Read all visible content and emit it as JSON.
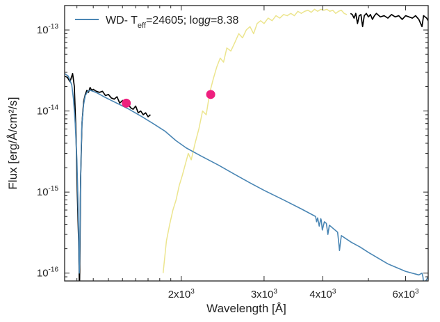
{
  "chart_data": {
    "type": "line",
    "title": "",
    "xlabel": "Wavelength [Å]",
    "ylabel": "Flux [erg/Å/cm²/s]",
    "xscale": "log",
    "yscale": "log",
    "xlim": [
      1130,
      6700
    ],
    "ylim": [
      8e-17,
      2e-13
    ],
    "grid": false,
    "legend": {
      "placement": "top-left",
      "entries": [
        "WD- Teff=24605; logg=8.38"
      ]
    },
    "legend_parts": {
      "prefix": "WD- T",
      "sub": "eff",
      "mid": "=24605; log",
      "italic": "g",
      "suffix": "=8.38"
    },
    "x_ticks": [
      {
        "value": 2000,
        "mant": "2x10",
        "exp": "3"
      },
      {
        "value": 3000,
        "mant": "3x10",
        "exp": "3"
      },
      {
        "value": 4000,
        "mant": "4x10",
        "exp": "3"
      },
      {
        "value": 6000,
        "mant": "6x10",
        "exp": "3"
      }
    ],
    "y_ticks": [
      {
        "value": 1e-16,
        "mant": "10",
        "exp": "-16"
      },
      {
        "value": 1e-15,
        "mant": "10",
        "exp": "-15"
      },
      {
        "value": 1e-14,
        "mant": "10",
        "exp": "-14"
      },
      {
        "value": 1e-13,
        "mant": "10",
        "exp": "-13"
      }
    ],
    "series": [
      {
        "name": "WD- Teff=24605; logg=8.38",
        "kind": "model",
        "color": "#4a86b4",
        "x": [
          1130,
          1150,
          1170,
          1180,
          1190,
          1200,
          1205,
          1210,
          1212,
          1214,
          1216,
          1218,
          1220,
          1225,
          1230,
          1240,
          1250,
          1265,
          1280,
          1300,
          1330,
          1370,
          1420,
          1480,
          1550,
          1650,
          1750,
          1850,
          1950,
          2050,
          2200,
          2400,
          2600,
          2800,
          3000,
          3300,
          3600,
          3860,
          3880,
          3900,
          3930,
          3960,
          3970,
          3990,
          4030,
          4070,
          4100,
          4130,
          4300,
          4320,
          4340,
          4360,
          4380,
          4600,
          4800,
          5000,
          5500,
          6000,
          6400,
          6500,
          6530,
          6560,
          6590,
          6620,
          6700
        ],
        "y": [
          2.9e-14,
          2.7e-14,
          2.1e-14,
          1.4e-14,
          7e-15,
          2.5e-15,
          1e-15,
          3.5e-16,
          1.5e-16,
          1e-16,
          1.3e-16,
          3e-16,
          8e-16,
          3e-15,
          7e-15,
          1.2e-14,
          1.55e-14,
          1.75e-14,
          1.8e-14,
          1.75e-14,
          1.65e-14,
          1.5e-14,
          1.35e-14,
          1.2e-14,
          1.05e-14,
          8.5e-15,
          6.9e-15,
          5.6e-15,
          4.3e-15,
          3.5e-15,
          2.8e-15,
          2.15e-15,
          1.65e-15,
          1.3e-15,
          1.05e-15,
          8e-16,
          6.2e-16,
          5e-16,
          4.3e-16,
          4.8e-16,
          3.8e-16,
          4.7e-16,
          4.5e-16,
          3.4e-16,
          4.3e-16,
          4.1e-16,
          3e-16,
          3.9e-16,
          3.2e-16,
          2.5e-16,
          1.9e-16,
          2.4e-16,
          2.9e-16,
          2.4e-16,
          2.1e-16,
          1.8e-16,
          1.3e-16,
          1.05e-16,
          9.5e-17,
          1e-16,
          9e-17,
          7e-17,
          6e-17,
          8e-17,
          9e-17
        ]
      },
      {
        "name": "",
        "kind": "observed-uv",
        "color": "#000000",
        "x": [
          1130,
          1145,
          1160,
          1175,
          1185,
          1195,
          1200,
          1205,
          1210,
          1214,
          1216,
          1218,
          1222,
          1230,
          1240,
          1250,
          1260,
          1270,
          1280,
          1290,
          1300,
          1320,
          1340,
          1360,
          1380,
          1400,
          1420,
          1440,
          1460,
          1480,
          1500,
          1520,
          1540,
          1560,
          1580,
          1600,
          1620,
          1640,
          1660,
          1680,
          1700,
          1720
        ],
        "y": [
          2.7e-14,
          2.6e-14,
          2.3e-14,
          2.9e-14,
          2e-14,
          5e-15,
          1.5e-15,
          6e-16,
          2.5e-16,
          8e-17,
          8e-17,
          2e-16,
          1.5e-15,
          7e-15,
          1.3e-14,
          1.6e-14,
          1.8e-14,
          1.7e-14,
          1.95e-14,
          1.8e-14,
          1.85e-14,
          1.75e-14,
          1.7e-14,
          1.75e-14,
          1.55e-14,
          1.6e-14,
          1.45e-14,
          1.4e-14,
          1.5e-14,
          1.25e-14,
          1.35e-14,
          1.15e-14,
          1.25e-14,
          1.1e-14,
          1.05e-14,
          1.15e-14,
          9.5e-15,
          1e-14,
          9e-15,
          9.5e-15,
          8.5e-15,
          9e-15
        ]
      },
      {
        "name": "",
        "kind": "observed-optical",
        "color": "#000000",
        "x": [
          4580,
          4620,
          4660,
          4700,
          4740,
          4780,
          4820,
          4860,
          4900,
          4950,
          5000,
          5050,
          5100,
          5150,
          5200,
          5300,
          5400,
          5500,
          5600,
          5700,
          5800,
          5900,
          6000,
          6100,
          6200,
          6300,
          6400,
          6500,
          6550,
          6600,
          6650,
          6700
        ],
        "y": [
          1.6e-13,
          1.55e-13,
          1.4e-13,
          1.6e-13,
          1.2e-13,
          1.5e-13,
          1.55e-13,
          1.1e-13,
          1.5e-13,
          1.6e-13,
          1.45e-13,
          1.55e-13,
          1.35e-13,
          1.5e-13,
          1.6e-13,
          1.45e-13,
          1.5e-13,
          1.4e-13,
          1.55e-13,
          1.45e-13,
          1.5e-13,
          1.35e-13,
          1.5e-13,
          1.45e-13,
          1.4e-13,
          1.5e-13,
          1.35e-13,
          1.1e-13,
          1.5e-13,
          1.45e-13,
          1.4e-13,
          1.3e-13
        ]
      },
      {
        "name": "",
        "kind": "template",
        "color": "#ece58e",
        "x": [
          1830,
          1860,
          1890,
          1920,
          1950,
          1980,
          2010,
          2040,
          2070,
          2100,
          2140,
          2180,
          2220,
          2260,
          2300,
          2340,
          2380,
          2420,
          2460,
          2500,
          2550,
          2600,
          2650,
          2700,
          2750,
          2800,
          2850,
          2900,
          2950,
          3000,
          3060,
          3120,
          3180,
          3240,
          3300,
          3360,
          3420,
          3480,
          3540,
          3600,
          3660,
          3720,
          3780,
          3840,
          3900,
          3960,
          4020,
          4080,
          4140,
          4200,
          4260,
          4320,
          4380,
          4440,
          4500
        ],
        "y": [
          1e-16,
          2.5e-16,
          4e-16,
          6e-16,
          8e-16,
          1.2e-15,
          1.6e-15,
          2.2e-15,
          3e-15,
          2.5e-15,
          4e-15,
          6e-15,
          1e-14,
          9e-15,
          1.7e-14,
          2.5e-14,
          3.5e-14,
          4.5e-14,
          4e-14,
          6e-14,
          5.5e-14,
          7e-14,
          9e-14,
          8e-14,
          1e-13,
          1.1e-13,
          9e-14,
          1.2e-13,
          1.3e-13,
          1.2e-13,
          1.4e-13,
          1.3e-13,
          1.5e-13,
          1.4e-13,
          1.55e-13,
          1.5e-13,
          1.6e-13,
          1.5e-13,
          1.7e-13,
          1.6e-13,
          1.7e-13,
          1.75e-13,
          1.65e-13,
          1.8e-13,
          1.7e-13,
          1.8e-13,
          1.75e-13,
          1.8e-13,
          1.7e-13,
          1.75e-13,
          1.6e-13,
          1.7e-13,
          1.75e-13,
          1.6e-13,
          1.55e-13
        ]
      },
      {
        "name": "",
        "kind": "photometry",
        "color": "#ee1f7e",
        "points": [
          {
            "x": 1528,
            "y": 1.25e-14
          },
          {
            "x": 2310,
            "y": 1.6e-14
          }
        ]
      }
    ]
  }
}
